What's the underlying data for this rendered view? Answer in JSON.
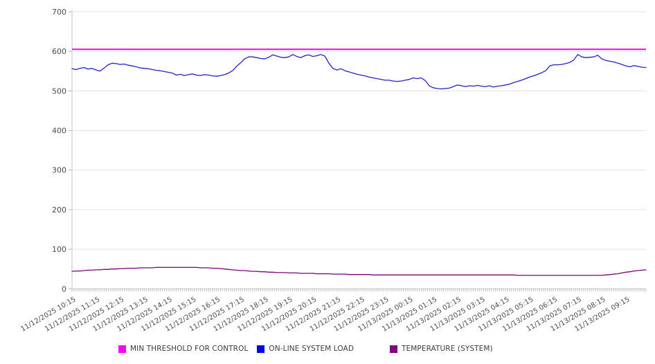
{
  "chart": {
    "background": "#ffffff",
    "plot": {
      "grid_color": "#e2e2e2",
      "axis_color": "#c6c6c6",
      "tick_color": "#b5b5b5",
      "label_color": "#4a4a4a"
    },
    "y_axis": {
      "min": 0,
      "max": 700,
      "step": 100,
      "tick_labels": [
        "0",
        "100",
        "200",
        "300",
        "400",
        "500",
        "600",
        "700"
      ]
    }
  },
  "chart_data": {
    "type": "line",
    "title": "",
    "xlabel": "",
    "ylabel": "",
    "ylim": [
      0,
      700
    ],
    "grid": "horizontal",
    "legend_position": "bottom",
    "x_interval_minutes": 10,
    "x_tick_labels": [
      "11/12/2025 10:15",
      "11/12/2025 11:15",
      "11/12/2025 12:15",
      "11/12/2025 13:15",
      "11/12/2025 14:15",
      "11/12/2025 15:15",
      "11/12/2025 16:15",
      "11/12/2025 17:15",
      "11/12/2025 18:15",
      "11/12/2025 19:15",
      "11/12/2025 20:15",
      "11/12/2025 21:15",
      "11/12/2025 22:15",
      "11/12/2025 23:15",
      "11/13/2025 00:15",
      "11/13/2025 01:15",
      "11/13/2025 02:15",
      "11/13/2025 03:15",
      "11/13/2025 04:15",
      "11/13/2025 05:15",
      "11/13/2025 06:15",
      "11/13/2025 07:15",
      "11/13/2025 08:15",
      "11/13/2025 09:15"
    ],
    "series": [
      {
        "name": "MIN THRESHOLD FOR CONTROL",
        "type": "threshold",
        "color": "#e40ce4",
        "swatch_color": "#ff00ff",
        "value": 605
      },
      {
        "name": "ON-LINE SYSTEM LOAD",
        "type": "line",
        "color": "#2222c8",
        "swatch_color": "#0000ee",
        "values": [
          556,
          554,
          557,
          559,
          555,
          557,
          553,
          550,
          558,
          566,
          570,
          569,
          567,
          568,
          565,
          563,
          561,
          558,
          557,
          556,
          554,
          552,
          551,
          549,
          547,
          545,
          540,
          542,
          539,
          541,
          543,
          540,
          539,
          541,
          540,
          538,
          537,
          539,
          541,
          545,
          551,
          562,
          571,
          581,
          586,
          586,
          584,
          582,
          581,
          585,
          591,
          588,
          585,
          584,
          586,
          592,
          587,
          584,
          589,
          591,
          587,
          589,
          592,
          588,
          570,
          557,
          553,
          556,
          551,
          548,
          545,
          542,
          540,
          538,
          535,
          533,
          531,
          529,
          527,
          527,
          525,
          524,
          525,
          527,
          529,
          533,
          531,
          533,
          526,
          513,
          508,
          506,
          505,
          506,
          507,
          511,
          515,
          513,
          511,
          513,
          512,
          514,
          512,
          511,
          513,
          510,
          512,
          513,
          515,
          517,
          521,
          524,
          527,
          531,
          535,
          538,
          542,
          546,
          551,
          563,
          566,
          566,
          567,
          569,
          572,
          578,
          592,
          586,
          584,
          585,
          586,
          590,
          581,
          577,
          575,
          573,
          570,
          567,
          563,
          561,
          564,
          562,
          560,
          559
        ]
      },
      {
        "name": "TEMPERATURE (SYSTEM)",
        "type": "line",
        "color": "#780078",
        "swatch_color": "#800080",
        "values": [
          44,
          45,
          45,
          46,
          47,
          47,
          48,
          48,
          49,
          49,
          50,
          50,
          51,
          51,
          52,
          52,
          52,
          53,
          53,
          53,
          53,
          54,
          54,
          54,
          54,
          54,
          54,
          54,
          54,
          54,
          54,
          54,
          53,
          53,
          53,
          52,
          52,
          51,
          50,
          49,
          48,
          47,
          46,
          46,
          45,
          44,
          44,
          43,
          43,
          42,
          42,
          41,
          41,
          41,
          40,
          40,
          40,
          39,
          39,
          39,
          39,
          38,
          38,
          38,
          38,
          37,
          37,
          37,
          37,
          36,
          36,
          36,
          36,
          36,
          36,
          35,
          35,
          35,
          35,
          35,
          35,
          35,
          35,
          35,
          35,
          35,
          35,
          35,
          35,
          35,
          35,
          35,
          35,
          35,
          35,
          35,
          35,
          35,
          35,
          35,
          35,
          35,
          35,
          35,
          35,
          35,
          35,
          35,
          35,
          35,
          35,
          34,
          34,
          34,
          34,
          34,
          34,
          34,
          34,
          34,
          34,
          34,
          34,
          34,
          34,
          34,
          34,
          34,
          34,
          34,
          34,
          34,
          34,
          35,
          36,
          37,
          38,
          40,
          42,
          43,
          45,
          46,
          47,
          48
        ]
      }
    ]
  }
}
